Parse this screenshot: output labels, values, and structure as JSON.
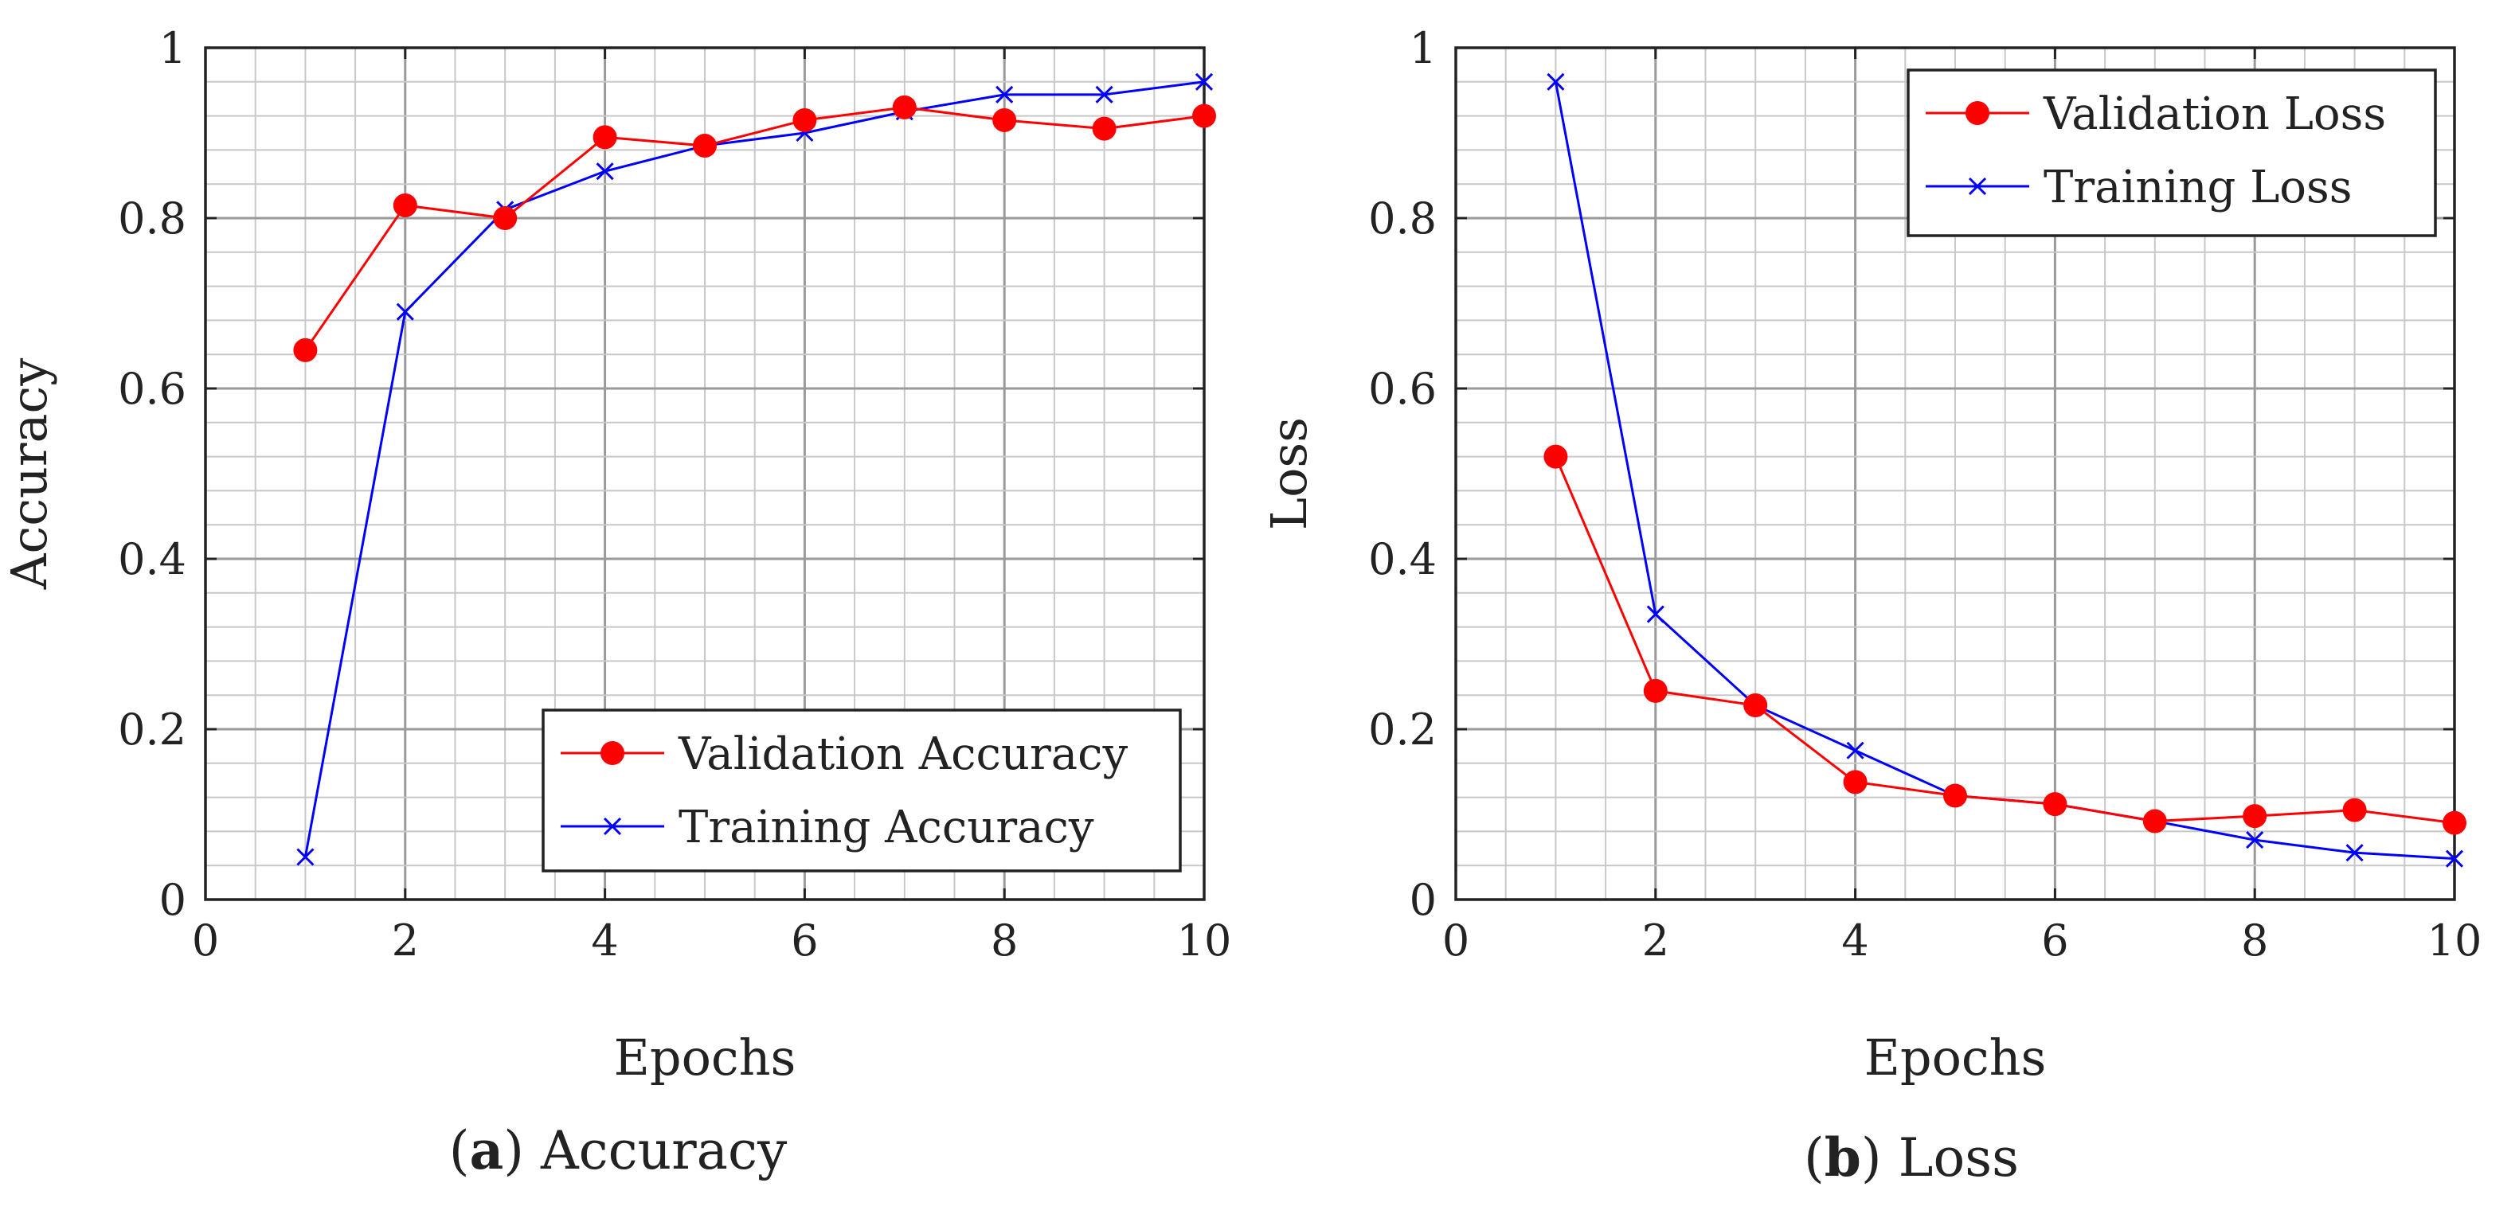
{
  "chart_data": [
    {
      "type": "line",
      "xlabel": "Epochs",
      "ylabel": "Accuracy",
      "xlim": [
        0,
        10
      ],
      "ylim": [
        0,
        1
      ],
      "x_ticks": [
        "0",
        "2",
        "4",
        "6",
        "8",
        "10"
      ],
      "y_ticks": [
        "0",
        "0.2",
        "0.4",
        "0.6",
        "0.8",
        "1"
      ],
      "grid": true,
      "legend_position": "bottom-right",
      "caption_tag": "a",
      "caption_text": "Accuracy",
      "series": [
        {
          "name": "Validation Accuracy",
          "color": "#ff0000",
          "marker": "circle",
          "x": [
            1,
            2,
            3,
            4,
            5,
            6,
            7,
            8,
            9,
            10
          ],
          "values": [
            0.645,
            0.815,
            0.8,
            0.895,
            0.885,
            0.915,
            0.93,
            0.915,
            0.905,
            0.92
          ]
        },
        {
          "name": "Training Accuracy",
          "color": "#0000ff",
          "marker": "x",
          "x": [
            1,
            2,
            3,
            4,
            5,
            6,
            7,
            8,
            9,
            10
          ],
          "values": [
            0.05,
            0.69,
            0.81,
            0.855,
            0.885,
            0.9,
            0.925,
            0.945,
            0.945,
            0.96
          ]
        }
      ]
    },
    {
      "type": "line",
      "xlabel": "Epochs",
      "ylabel": "Loss",
      "xlim": [
        0,
        10
      ],
      "ylim": [
        0,
        1
      ],
      "x_ticks": [
        "0",
        "2",
        "4",
        "6",
        "8",
        "10"
      ],
      "y_ticks": [
        "0",
        "0.2",
        "0.4",
        "0.6",
        "0.8",
        "1"
      ],
      "grid": true,
      "legend_position": "top-right",
      "caption_tag": "b",
      "caption_text": "Loss",
      "series": [
        {
          "name": "Validation Loss",
          "color": "#ff0000",
          "marker": "circle",
          "x": [
            1,
            2,
            3,
            4,
            5,
            6,
            7,
            8,
            9,
            10
          ],
          "values": [
            0.52,
            0.245,
            0.228,
            0.138,
            0.122,
            0.112,
            0.092,
            0.098,
            0.105,
            0.09
          ]
        },
        {
          "name": "Training Loss",
          "color": "#0000ff",
          "marker": "x",
          "x": [
            1,
            2,
            3,
            4,
            5,
            6,
            7,
            8,
            9,
            10
          ],
          "values": [
            0.96,
            0.335,
            0.228,
            0.175,
            0.122,
            0.112,
            0.092,
            0.07,
            0.055,
            0.048
          ]
        }
      ]
    }
  ]
}
